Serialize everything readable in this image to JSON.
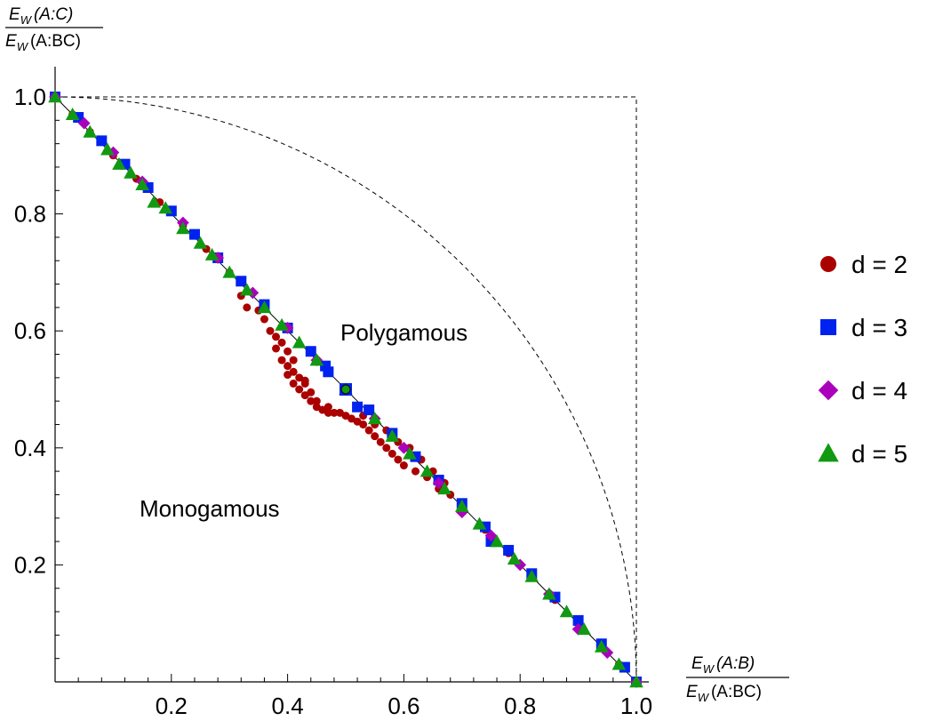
{
  "chart_data": {
    "type": "scatter",
    "x_axis_label": {
      "numerator": {
        "E": "E",
        "sub": "W",
        "arg": "(A:B)"
      },
      "denominator": {
        "E": "E",
        "sub": "W",
        "arg": "(A:BC)"
      }
    },
    "y_axis_label": {
      "numerator": {
        "E": "E",
        "sub": "W",
        "arg": "(A:C)"
      },
      "denominator": {
        "E": "E",
        "sub": "W",
        "arg": "(A:BC)"
      }
    },
    "xlim": [
      0,
      1.0
    ],
    "ylim": [
      0,
      1.0
    ],
    "x_ticks": [
      "0.2",
      "0.4",
      "0.6",
      "0.8",
      "1.0"
    ],
    "y_ticks": [
      "0.2",
      "0.4",
      "0.6",
      "0.8",
      "1.0"
    ],
    "x_tick_values": [
      0.2,
      0.4,
      0.6,
      0.8,
      1.0
    ],
    "y_tick_values": [
      0.2,
      0.4,
      0.6,
      0.8,
      1.0
    ],
    "annotations": [
      "Polygamous",
      "Monogamous"
    ],
    "reference_curves": [
      "line y = 1 - x",
      "quarter circle x^2 + y^2 = 1 (dashed)",
      "box x = 1, y = 1 (dashed)"
    ],
    "legend_position": "right",
    "series": [
      {
        "name": "d = 2",
        "marker": "circle",
        "color": "#aa0000",
        "points": [
          [
            0.0,
            1.0
          ],
          [
            0.03,
            0.97
          ],
          [
            0.06,
            0.94
          ],
          [
            0.1,
            0.9
          ],
          [
            0.14,
            0.86
          ],
          [
            0.18,
            0.82
          ],
          [
            0.22,
            0.78
          ],
          [
            0.26,
            0.74
          ],
          [
            0.3,
            0.7
          ],
          [
            0.32,
            0.66
          ],
          [
            0.33,
            0.64
          ],
          [
            0.35,
            0.635
          ],
          [
            0.36,
            0.62
          ],
          [
            0.37,
            0.6
          ],
          [
            0.38,
            0.59
          ],
          [
            0.39,
            0.58
          ],
          [
            0.4,
            0.565
          ],
          [
            0.41,
            0.55
          ],
          [
            0.38,
            0.57
          ],
          [
            0.39,
            0.55
          ],
          [
            0.4,
            0.54
          ],
          [
            0.41,
            0.53
          ],
          [
            0.42,
            0.52
          ],
          [
            0.43,
            0.515
          ],
          [
            0.4,
            0.525
          ],
          [
            0.41,
            0.51
          ],
          [
            0.42,
            0.5
          ],
          [
            0.43,
            0.49
          ],
          [
            0.44,
            0.48
          ],
          [
            0.45,
            0.47
          ],
          [
            0.46,
            0.465
          ],
          [
            0.47,
            0.46
          ],
          [
            0.48,
            0.46
          ],
          [
            0.49,
            0.46
          ],
          [
            0.5,
            0.5
          ],
          [
            0.51,
            0.45
          ],
          [
            0.52,
            0.445
          ],
          [
            0.53,
            0.44
          ],
          [
            0.54,
            0.43
          ],
          [
            0.55,
            0.42
          ],
          [
            0.56,
            0.41
          ],
          [
            0.57,
            0.4
          ],
          [
            0.58,
            0.39
          ],
          [
            0.59,
            0.38
          ],
          [
            0.6,
            0.37
          ],
          [
            0.62,
            0.36
          ],
          [
            0.64,
            0.35
          ],
          [
            0.66,
            0.33
          ],
          [
            0.68,
            0.32
          ],
          [
            0.7,
            0.3
          ],
          [
            0.74,
            0.26
          ],
          [
            0.78,
            0.22
          ],
          [
            0.82,
            0.18
          ],
          [
            0.86,
            0.14
          ],
          [
            0.9,
            0.1
          ],
          [
            0.94,
            0.06
          ],
          [
            0.97,
            0.03
          ],
          [
            1.0,
            0.0
          ],
          [
            0.53,
            0.455
          ],
          [
            0.55,
            0.44
          ],
          [
            0.57,
            0.43
          ],
          [
            0.59,
            0.41
          ],
          [
            0.61,
            0.4
          ],
          [
            0.63,
            0.38
          ],
          [
            0.65,
            0.36
          ],
          [
            0.67,
            0.34
          ],
          [
            0.45,
            0.48
          ],
          [
            0.44,
            0.495
          ],
          [
            0.43,
            0.51
          ],
          [
            0.47,
            0.47
          ],
          [
            0.5,
            0.455
          ]
        ]
      },
      {
        "name": "d = 3",
        "marker": "square",
        "color": "#0022ee",
        "points": [
          [
            0.0,
            1.0
          ],
          [
            0.04,
            0.965
          ],
          [
            0.08,
            0.925
          ],
          [
            0.12,
            0.885
          ],
          [
            0.16,
            0.845
          ],
          [
            0.2,
            0.805
          ],
          [
            0.24,
            0.765
          ],
          [
            0.28,
            0.725
          ],
          [
            0.32,
            0.685
          ],
          [
            0.36,
            0.645
          ],
          [
            0.4,
            0.605
          ],
          [
            0.44,
            0.565
          ],
          [
            0.465,
            0.54
          ],
          [
            0.47,
            0.53
          ],
          [
            0.5,
            0.5
          ],
          [
            0.52,
            0.47
          ],
          [
            0.54,
            0.465
          ],
          [
            0.58,
            0.425
          ],
          [
            0.62,
            0.385
          ],
          [
            0.66,
            0.345
          ],
          [
            0.7,
            0.305
          ],
          [
            0.74,
            0.265
          ],
          [
            0.75,
            0.24
          ],
          [
            0.78,
            0.225
          ],
          [
            0.82,
            0.185
          ],
          [
            0.86,
            0.145
          ],
          [
            0.9,
            0.105
          ],
          [
            0.94,
            0.065
          ],
          [
            0.98,
            0.025
          ],
          [
            1.0,
            0.0
          ]
        ]
      },
      {
        "name": "d = 4",
        "marker": "diamond",
        "color": "#aa00bb",
        "points": [
          [
            0.0,
            1.0
          ],
          [
            0.05,
            0.955
          ],
          [
            0.1,
            0.905
          ],
          [
            0.15,
            0.855
          ],
          [
            0.22,
            0.785
          ],
          [
            0.28,
            0.725
          ],
          [
            0.34,
            0.665
          ],
          [
            0.4,
            0.605
          ],
          [
            0.45,
            0.55
          ],
          [
            0.5,
            0.5
          ],
          [
            0.55,
            0.45
          ],
          [
            0.6,
            0.4
          ],
          [
            0.66,
            0.34
          ],
          [
            0.7,
            0.29
          ],
          [
            0.75,
            0.25
          ],
          [
            0.8,
            0.2
          ],
          [
            0.85,
            0.15
          ],
          [
            0.9,
            0.09
          ],
          [
            0.95,
            0.05
          ],
          [
            1.0,
            0.0
          ]
        ]
      },
      {
        "name": "d = 5",
        "marker": "triangle",
        "color": "#119911",
        "points": [
          [
            0.0,
            1.0
          ],
          [
            0.03,
            0.97
          ],
          [
            0.06,
            0.94
          ],
          [
            0.09,
            0.91
          ],
          [
            0.11,
            0.885
          ],
          [
            0.13,
            0.87
          ],
          [
            0.15,
            0.85
          ],
          [
            0.17,
            0.82
          ],
          [
            0.19,
            0.81
          ],
          [
            0.22,
            0.775
          ],
          [
            0.25,
            0.75
          ],
          [
            0.27,
            0.73
          ],
          [
            0.3,
            0.7
          ],
          [
            0.33,
            0.67
          ],
          [
            0.36,
            0.64
          ],
          [
            0.39,
            0.61
          ],
          [
            0.42,
            0.58
          ],
          [
            0.45,
            0.55
          ],
          [
            0.5,
            0.5
          ],
          [
            0.55,
            0.45
          ],
          [
            0.58,
            0.42
          ],
          [
            0.61,
            0.39
          ],
          [
            0.64,
            0.36
          ],
          [
            0.67,
            0.33
          ],
          [
            0.7,
            0.3
          ],
          [
            0.73,
            0.27
          ],
          [
            0.76,
            0.24
          ],
          [
            0.79,
            0.21
          ],
          [
            0.82,
            0.18
          ],
          [
            0.85,
            0.15
          ],
          [
            0.88,
            0.12
          ],
          [
            0.91,
            0.09
          ],
          [
            0.94,
            0.06
          ],
          [
            0.97,
            0.03
          ],
          [
            1.0,
            0.0
          ]
        ]
      }
    ]
  }
}
